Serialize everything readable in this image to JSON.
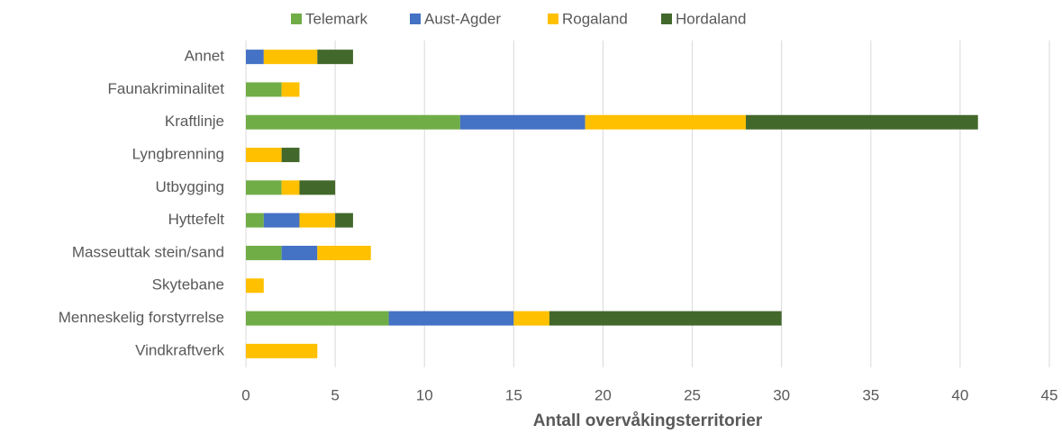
{
  "chart_data": {
    "type": "stacked_barh",
    "x_label": "Antall overvåkingsterritorier",
    "categories": [
      "Annet",
      "Faunakriminalitet",
      "Kraftlinje",
      "Lyngbrenning",
      "Utbygging",
      "Hyttefelt",
      "Masseuttak stein/sand",
      "Skytebane",
      "Menneskelig forstyrrelse",
      "Vindkraftverk"
    ],
    "series": [
      {
        "name": "Telemark",
        "color": "#70ad47",
        "values": [
          0,
          2,
          12,
          0,
          2,
          1,
          2,
          0,
          8,
          0
        ]
      },
      {
        "name": "Aust-Agder",
        "color": "#4472c4",
        "values": [
          1,
          0,
          7,
          0,
          0,
          2,
          2,
          0,
          7,
          0
        ]
      },
      {
        "name": "Rogaland",
        "color": "#ffc000",
        "values": [
          3,
          1,
          9,
          2,
          1,
          2,
          3,
          1,
          2,
          4
        ]
      },
      {
        "name": "Hordaland",
        "color": "#43682b",
        "values": [
          2,
          0,
          13,
          1,
          2,
          1,
          0,
          0,
          13,
          0
        ]
      }
    ],
    "xlim": [
      0,
      45
    ],
    "xticks": [
      0,
      5,
      10,
      15,
      20,
      25,
      30,
      35,
      40,
      45
    ],
    "grid": true,
    "legend": "top"
  }
}
